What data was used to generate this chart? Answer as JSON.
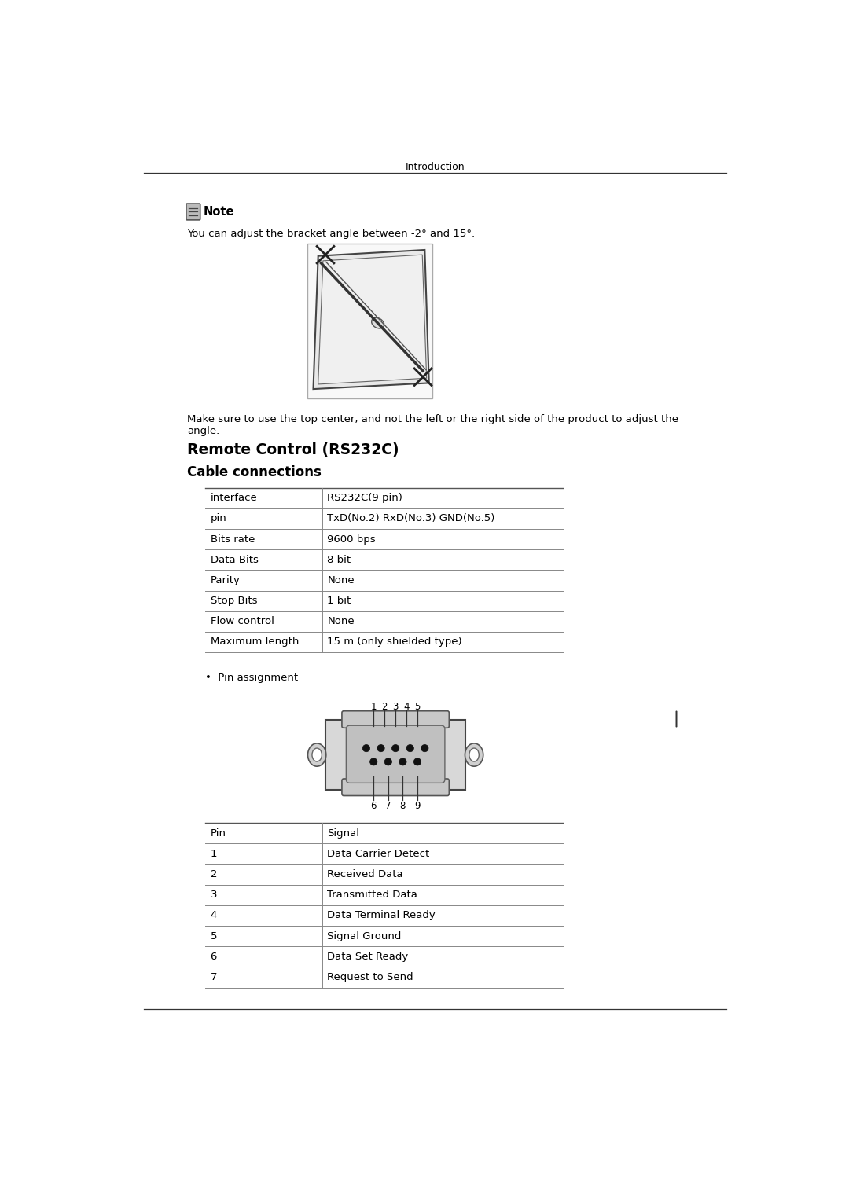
{
  "page_header": "Introduction",
  "note_text": "Note",
  "note_body": "You can adjust the bracket angle between -2° and 15°.",
  "body_text_1": "Make sure to use the top center, and not the left or the right side of the product to adjust the",
  "body_text_2": "angle.",
  "section_title": "Remote Control (RS232C)",
  "subsection_title": "Cable connections",
  "table1_rows": [
    [
      "interface",
      "RS232C(9 pin)"
    ],
    [
      "pin",
      "TxD(No.2) RxD(No.3) GND(No.5)"
    ],
    [
      "Bits rate",
      "9600 bps"
    ],
    [
      "Data Bits",
      "8 bit"
    ],
    [
      "Parity",
      "None"
    ],
    [
      "Stop Bits",
      "1 bit"
    ],
    [
      "Flow control",
      "None"
    ],
    [
      "Maximum length",
      "15 m (only shielded type)"
    ]
  ],
  "bullet_text": "Pin assignment",
  "pin_numbers_top": [
    "1",
    "2",
    "3",
    "4",
    "5"
  ],
  "pin_numbers_bottom": [
    "6",
    "7",
    "8",
    "9"
  ],
  "table2_rows": [
    [
      "Pin",
      "Signal"
    ],
    [
      "1",
      "Data Carrier Detect"
    ],
    [
      "2",
      "Received Data"
    ],
    [
      "3",
      "Transmitted Data"
    ],
    [
      "4",
      "Data Terminal Ready"
    ],
    [
      "5",
      "Signal Ground"
    ],
    [
      "6",
      "Data Set Ready"
    ],
    [
      "7",
      "Request to Send"
    ]
  ],
  "bg_color": "#ffffff",
  "text_color": "#000000",
  "connector_body_color": "#d0d0d0",
  "connector_inner_color": "#c0c0c0",
  "connector_face_color": "#cccccc"
}
